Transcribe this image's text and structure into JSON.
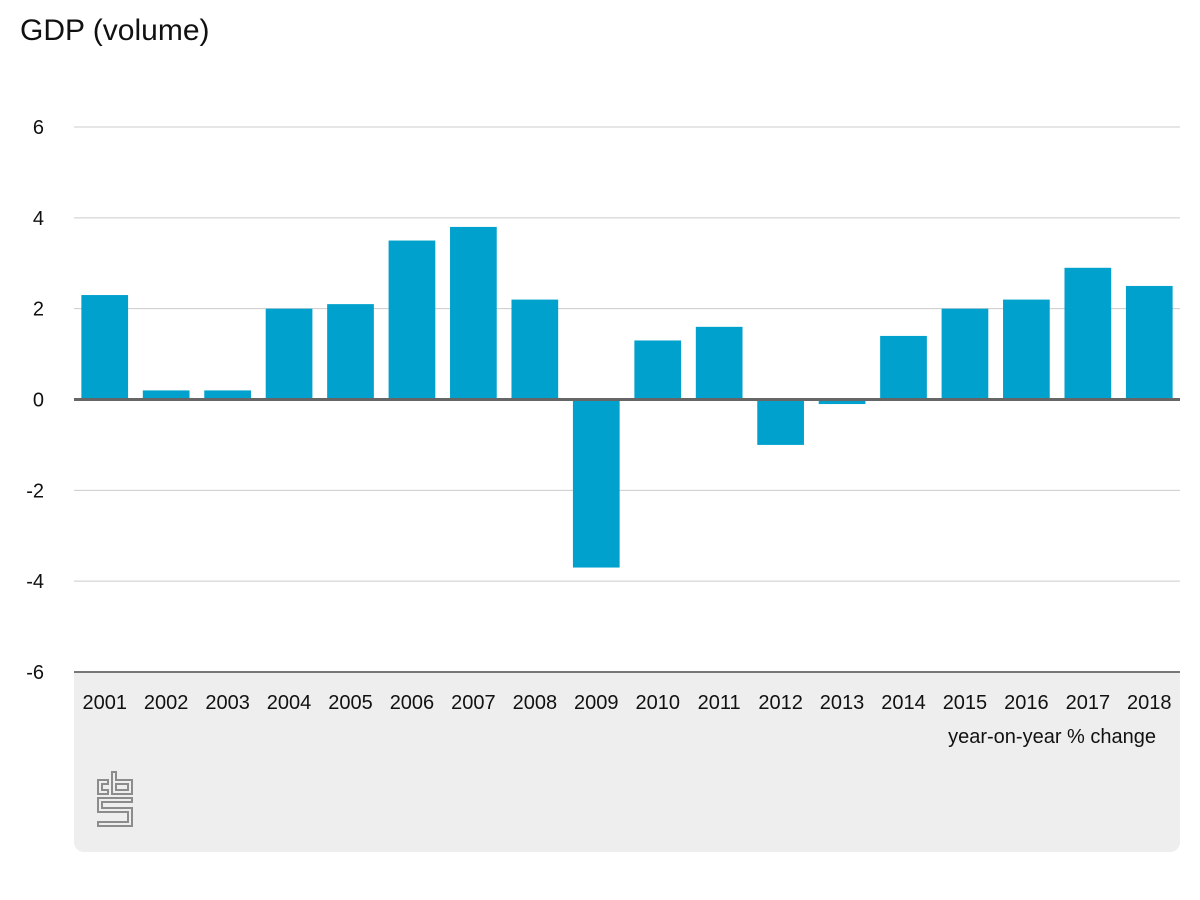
{
  "page": {
    "title": "GDP (volume)",
    "unit_label": "year-on-year % change",
    "logo_text": "cbs"
  },
  "colors": {
    "bar": "#00a1cd",
    "gridline": "#cccccc",
    "zero_line": "#666666",
    "footer_bg": "#eeeeee"
  },
  "chart_data": {
    "type": "bar",
    "title": "GDP (volume)",
    "xlabel": "",
    "ylabel": "year-on-year % change",
    "categories": [
      "2001",
      "2002",
      "2003",
      "2004",
      "2005",
      "2006",
      "2007",
      "2008",
      "2009",
      "2010",
      "2011",
      "2012",
      "2013",
      "2014",
      "2015",
      "2016",
      "2017",
      "2018"
    ],
    "values": [
      2.3,
      0.2,
      0.2,
      2.0,
      2.1,
      3.5,
      3.8,
      2.2,
      -3.7,
      1.3,
      1.6,
      -1.0,
      -0.1,
      1.4,
      2.0,
      2.2,
      2.9,
      2.5
    ],
    "ylim": [
      -6,
      6
    ],
    "yticks": [
      6,
      4,
      2,
      0,
      -2,
      -4,
      -6
    ],
    "grid": true,
    "legend": "none"
  }
}
